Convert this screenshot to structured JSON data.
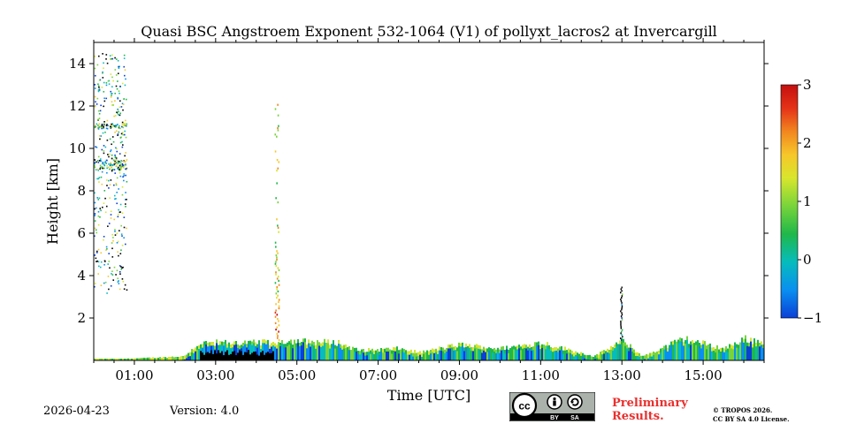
{
  "chart_data": {
    "type": "heatmap",
    "title": "Quasi BSC Angstroem Exponent 532-1064 (V1) of pollyxt_lacros2 at Invercargill",
    "xlabel": "Time [UTC]",
    "ylabel": "Height [km]",
    "xlim": [
      0.0,
      16.5
    ],
    "ylim": [
      0.0,
      15.0
    ],
    "x_ticks": [
      {
        "value": 1,
        "label": "01:00"
      },
      {
        "value": 3,
        "label": "03:00"
      },
      {
        "value": 5,
        "label": "05:00"
      },
      {
        "value": 7,
        "label": "07:00"
      },
      {
        "value": 9,
        "label": "09:00"
      },
      {
        "value": 11,
        "label": "11:00"
      },
      {
        "value": 13,
        "label": "13:00"
      },
      {
        "value": 15,
        "label": "15:00"
      }
    ],
    "y_ticks": [
      {
        "value": 2,
        "label": "2"
      },
      {
        "value": 4,
        "label": "4"
      },
      {
        "value": 6,
        "label": "6"
      },
      {
        "value": 8,
        "label": "8"
      },
      {
        "value": 10,
        "label": "10"
      },
      {
        "value": 12,
        "label": "12"
      },
      {
        "value": 14,
        "label": "14"
      }
    ],
    "colorbar": {
      "min": -1,
      "max": 3,
      "ticks": [
        {
          "value": 3,
          "label": "3"
        },
        {
          "value": 2,
          "label": "2"
        },
        {
          "value": 1,
          "label": "1"
        },
        {
          "value": 0,
          "label": "0"
        },
        {
          "value": -1,
          "label": "−1"
        }
      ],
      "colors": [
        "#0b3fd6",
        "#0a8ff0",
        "#06bcbc",
        "#1fb84a",
        "#78d43a",
        "#d8e62c",
        "#f6c72a",
        "#f2861f",
        "#e43217",
        "#c40f0f"
      ]
    },
    "boundary_layer_profile": [
      [
        0.0,
        0.0
      ],
      [
        1.0,
        0.1
      ],
      [
        2.2,
        0.2
      ],
      [
        2.6,
        0.9
      ],
      [
        4.4,
        0.9
      ],
      [
        4.6,
        1.0
      ],
      [
        6.0,
        0.9
      ],
      [
        6.5,
        0.5
      ],
      [
        7.5,
        0.6
      ],
      [
        8.0,
        0.4
      ],
      [
        9.0,
        0.8
      ],
      [
        10.0,
        0.6
      ],
      [
        11.0,
        0.9
      ],
      [
        12.3,
        0.2
      ],
      [
        13.0,
        1.0
      ],
      [
        13.5,
        0.2
      ],
      [
        14.5,
        1.1
      ],
      [
        15.5,
        0.6
      ],
      [
        16.0,
        1.1
      ],
      [
        16.5,
        0.9
      ]
    ],
    "features": [
      {
        "name": "cirrus-layer",
        "x_range": [
          0.0,
          0.8
        ],
        "height_range": [
          3.2,
          14.5
        ]
      },
      {
        "name": "plume-column",
        "x_range": [
          4.45,
          4.55
        ],
        "height_range": [
          1.0,
          12.2
        ]
      },
      {
        "name": "thin-column",
        "x_range": [
          12.95,
          13.0
        ],
        "height_range": [
          1.0,
          3.5
        ]
      },
      {
        "name": "dense-aerosol-low-angstroem",
        "x_range": [
          2.6,
          4.4
        ],
        "height_range": [
          0.0,
          0.5
        ]
      }
    ]
  },
  "footer": {
    "date": "2026-04-23",
    "version": "Version: 4.0",
    "preliminary_line1": "Preliminary",
    "preliminary_line2": "Results.",
    "copyright_line1": "© TROPOS 2026.",
    "copyright_line2": "CC BY SA 4.0 License.",
    "cc_label": "cc",
    "by_label": "BY",
    "sa_label": "SA"
  }
}
